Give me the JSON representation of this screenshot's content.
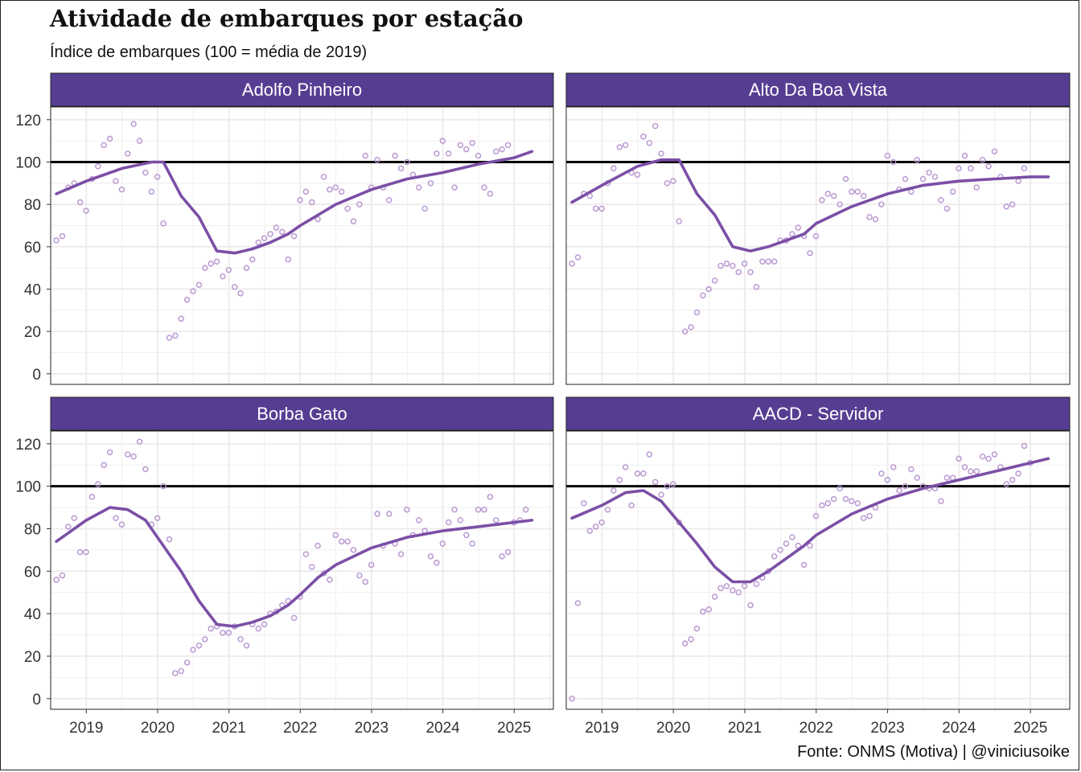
{
  "title": "Atividade de embarques por estação",
  "subtitle": "Índice de embarques (100 = média de 2019)",
  "caption": "Fonte: ONMS (Motiva) | @viniciusoike",
  "colors": {
    "strip": "#573d92",
    "line": "#7b4fa6",
    "points": "#b793d0",
    "reference": "#000000",
    "grid": "#ebebeb"
  },
  "chart_data": {
    "type": "scatter",
    "title": "Atividade de embarques por estação",
    "subtitle": "Índice de embarques (100 = média de 2019)",
    "xlabel": "",
    "ylabel": "",
    "xlim": [
      2018.5,
      2025.55
    ],
    "ylim": [
      -5,
      126
    ],
    "x_ticks": [
      "2019",
      "2020",
      "2021",
      "2022",
      "2023",
      "2024",
      "2025"
    ],
    "y_ticks": [
      "0",
      "20",
      "40",
      "60",
      "80",
      "100",
      "120"
    ],
    "reference_line": 100,
    "grid": true,
    "panels": [
      {
        "name": "Adolfo Pinheiro",
        "points_y": [
          63,
          65,
          88,
          90,
          81,
          77,
          92,
          98,
          108,
          111,
          91,
          87,
          104,
          118,
          110,
          95,
          86,
          93,
          71,
          17,
          18,
          26,
          35,
          39,
          42,
          50,
          52,
          53,
          46,
          49,
          41,
          38,
          50,
          54,
          62,
          64,
          66,
          69,
          67,
          54,
          65,
          82,
          86,
          81,
          73,
          93,
          87,
          88,
          86,
          78,
          72,
          80,
          103,
          88,
          101,
          88,
          82,
          103,
          97,
          100,
          94,
          88,
          78,
          90,
          104,
          110,
          104,
          88,
          108,
          106,
          109,
          103,
          88,
          85,
          105,
          106,
          108
        ],
        "trend": [
          {
            "x": 2018.58,
            "y": 85
          },
          {
            "x": 2019.0,
            "y": 91
          },
          {
            "x": 2019.5,
            "y": 97
          },
          {
            "x": 2019.92,
            "y": 100
          },
          {
            "x": 2020.08,
            "y": 100
          },
          {
            "x": 2020.33,
            "y": 84
          },
          {
            "x": 2020.58,
            "y": 74
          },
          {
            "x": 2020.83,
            "y": 58
          },
          {
            "x": 2021.08,
            "y": 57
          },
          {
            "x": 2021.33,
            "y": 59
          },
          {
            "x": 2021.58,
            "y": 62
          },
          {
            "x": 2021.83,
            "y": 66
          },
          {
            "x": 2022.0,
            "y": 70
          },
          {
            "x": 2022.5,
            "y": 80
          },
          {
            "x": 2023.0,
            "y": 87
          },
          {
            "x": 2023.5,
            "y": 92
          },
          {
            "x": 2024.0,
            "y": 95
          },
          {
            "x": 2024.5,
            "y": 99
          },
          {
            "x": 2025.0,
            "y": 102
          },
          {
            "x": 2025.25,
            "y": 105
          }
        ]
      },
      {
        "name": "Alto Da Boa Vista",
        "points_y": [
          52,
          55,
          85,
          84,
          78,
          78,
          90,
          97,
          107,
          108,
          95,
          94,
          112,
          109,
          117,
          104,
          90,
          91,
          72,
          20,
          22,
          29,
          37,
          40,
          44,
          51,
          52,
          51,
          48,
          52,
          48,
          41,
          53,
          53,
          53,
          63,
          63,
          66,
          69,
          65,
          57,
          65,
          82,
          85,
          84,
          80,
          92,
          86,
          86,
          84,
          74,
          73,
          80,
          103,
          100,
          87,
          92,
          86,
          101,
          92,
          95,
          93,
          82,
          78,
          86,
          97,
          103,
          97,
          88,
          101,
          98,
          105,
          93,
          79,
          80,
          91,
          97
        ],
        "trend": [
          {
            "x": 2018.58,
            "y": 81
          },
          {
            "x": 2019.0,
            "y": 89
          },
          {
            "x": 2019.5,
            "y": 98
          },
          {
            "x": 2019.83,
            "y": 101
          },
          {
            "x": 2020.08,
            "y": 101
          },
          {
            "x": 2020.33,
            "y": 85
          },
          {
            "x": 2020.58,
            "y": 75
          },
          {
            "x": 2020.83,
            "y": 60
          },
          {
            "x": 2021.08,
            "y": 58
          },
          {
            "x": 2021.33,
            "y": 60
          },
          {
            "x": 2021.58,
            "y": 63
          },
          {
            "x": 2021.83,
            "y": 66
          },
          {
            "x": 2022.0,
            "y": 71
          },
          {
            "x": 2022.5,
            "y": 79
          },
          {
            "x": 2023.0,
            "y": 85
          },
          {
            "x": 2023.5,
            "y": 89
          },
          {
            "x": 2024.0,
            "y": 91
          },
          {
            "x": 2024.5,
            "y": 92
          },
          {
            "x": 2025.0,
            "y": 93
          },
          {
            "x": 2025.25,
            "y": 93
          }
        ]
      },
      {
        "name": "Borba Gato",
        "points_y": [
          56,
          58,
          81,
          85,
          69,
          69,
          95,
          101,
          110,
          116,
          85,
          82,
          115,
          114,
          121,
          108,
          82,
          85,
          100,
          75,
          12,
          13,
          17,
          23,
          25,
          28,
          33,
          34,
          31,
          31,
          34,
          28,
          25,
          35,
          33,
          35,
          40,
          41,
          44,
          46,
          38,
          48,
          68,
          62,
          72,
          59,
          56,
          77,
          74,
          74,
          70,
          58,
          55,
          63,
          87,
          72,
          87,
          73,
          68,
          89,
          77,
          84,
          79,
          67,
          64,
          73,
          83,
          89,
          84,
          77,
          73,
          89,
          89,
          95,
          84,
          67,
          69,
          83,
          84,
          89
        ],
        "trend": [
          {
            "x": 2018.58,
            "y": 74
          },
          {
            "x": 2019.0,
            "y": 84
          },
          {
            "x": 2019.33,
            "y": 90
          },
          {
            "x": 2019.58,
            "y": 89
          },
          {
            "x": 2019.83,
            "y": 84
          },
          {
            "x": 2020.08,
            "y": 72
          },
          {
            "x": 2020.33,
            "y": 60
          },
          {
            "x": 2020.58,
            "y": 46
          },
          {
            "x": 2020.83,
            "y": 35
          },
          {
            "x": 2021.08,
            "y": 34
          },
          {
            "x": 2021.33,
            "y": 36
          },
          {
            "x": 2021.58,
            "y": 39
          },
          {
            "x": 2021.83,
            "y": 44
          },
          {
            "x": 2022.0,
            "y": 49
          },
          {
            "x": 2022.25,
            "y": 57
          },
          {
            "x": 2022.5,
            "y": 63
          },
          {
            "x": 2023.0,
            "y": 71
          },
          {
            "x": 2023.5,
            "y": 76
          },
          {
            "x": 2024.0,
            "y": 79
          },
          {
            "x": 2024.5,
            "y": 81
          },
          {
            "x": 2025.0,
            "y": 83
          },
          {
            "x": 2025.25,
            "y": 84
          }
        ]
      },
      {
        "name": "AACD - Servidor",
        "points_y": [
          0,
          45,
          92,
          79,
          81,
          83,
          89,
          98,
          103,
          109,
          91,
          106,
          106,
          115,
          102,
          96,
          100,
          101,
          83,
          26,
          28,
          33,
          41,
          42,
          48,
          52,
          53,
          51,
          50,
          53,
          44,
          54,
          57,
          60,
          67,
          70,
          73,
          76,
          72,
          63,
          72,
          86,
          91,
          92,
          94,
          99,
          94,
          93,
          92,
          85,
          86,
          90,
          106,
          103,
          109,
          98,
          100,
          108,
          104,
          100,
          99,
          99,
          93,
          104,
          104,
          113,
          109,
          107,
          107,
          114,
          113,
          115,
          109,
          101,
          103,
          106,
          119,
          111
        ],
        "trend": [
          {
            "x": 2018.58,
            "y": 85
          },
          {
            "x": 2019.0,
            "y": 91
          },
          {
            "x": 2019.33,
            "y": 97
          },
          {
            "x": 2019.58,
            "y": 98
          },
          {
            "x": 2019.83,
            "y": 93
          },
          {
            "x": 2020.08,
            "y": 83
          },
          {
            "x": 2020.33,
            "y": 73
          },
          {
            "x": 2020.58,
            "y": 62
          },
          {
            "x": 2020.83,
            "y": 55
          },
          {
            "x": 2021.08,
            "y": 55
          },
          {
            "x": 2021.33,
            "y": 60
          },
          {
            "x": 2021.58,
            "y": 66
          },
          {
            "x": 2021.83,
            "y": 72
          },
          {
            "x": 2022.0,
            "y": 77
          },
          {
            "x": 2022.5,
            "y": 87
          },
          {
            "x": 2023.0,
            "y": 94
          },
          {
            "x": 2023.5,
            "y": 99
          },
          {
            "x": 2024.0,
            "y": 103
          },
          {
            "x": 2024.5,
            "y": 107
          },
          {
            "x": 2025.0,
            "y": 111
          },
          {
            "x": 2025.25,
            "y": 113
          }
        ]
      }
    ]
  }
}
